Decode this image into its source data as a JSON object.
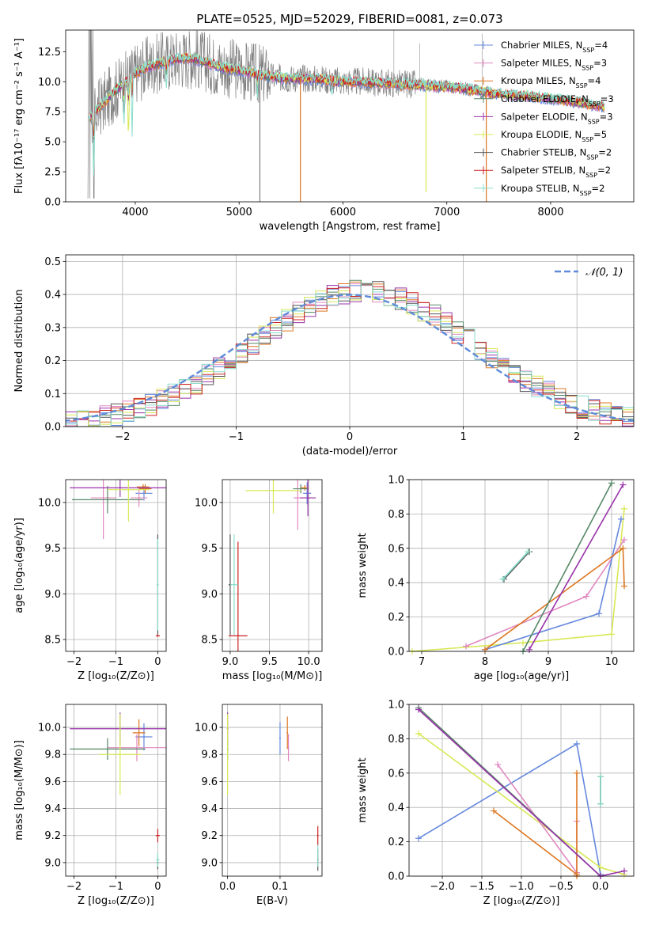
{
  "colors": {
    "chabrier_miles": "#6688dd",
    "salpeter_miles": "#e088c0",
    "kroupa_miles": "#dd7722",
    "chabrier_elodie": "#558866",
    "salpeter_elodie": "#9933aa",
    "kroupa_elodie": "#d8e855",
    "chabrier_stelib": "#555555",
    "salpeter_stelib": "#cc2222",
    "kroupa_stelib": "#88ddcc",
    "normal_curve": "#5f8bd8",
    "raw_spectrum": "#808080"
  },
  "chart_data": [
    {
      "id": "spectrum",
      "type": "line",
      "title": "PLATE=0525, MJD=52029, FIBERID=0081, z=0.073",
      "xlabel": "wavelength [Angstrom, rest frame]",
      "ylabel": "Flux [fλ10⁻¹⁷ erg cm⁻² s⁻¹ A⁻¹]",
      "xlim": [
        3330,
        8800
      ],
      "ylim": [
        0,
        14.3
      ],
      "xticks": [
        4000,
        5000,
        6000,
        7000,
        8000
      ],
      "xticklabels": [
        "4000",
        "5000",
        "6000",
        "7000",
        "8000"
      ],
      "yticks": [
        0,
        2.5,
        5,
        7.5,
        10,
        12.5
      ],
      "yticklabels": [
        "0.0",
        "2.5",
        "5.0",
        "7.5",
        "10.0",
        "12.5"
      ],
      "grid": false,
      "legend_position": "top-right",
      "legend": [
        {
          "label": "Chabrier MILES, N",
          "sub": "SSP",
          "tail": "=4",
          "color_key": "chabrier_miles"
        },
        {
          "label": "Salpeter MILES, N",
          "sub": "SSP",
          "tail": "=3",
          "color_key": "salpeter_miles"
        },
        {
          "label": "Kroupa MILES, N",
          "sub": "SSP",
          "tail": "=4",
          "color_key": "kroupa_miles"
        },
        {
          "label": "Chabrier ELODIE, N",
          "sub": "SSP",
          "tail": "=3",
          "color_key": "chabrier_elodie"
        },
        {
          "label": "Salpeter ELODIE, N",
          "sub": "SSP",
          "tail": "=3",
          "color_key": "salpeter_elodie"
        },
        {
          "label": "Kroupa ELODIE, N",
          "sub": "SSP",
          "tail": "=5",
          "color_key": "kroupa_elodie"
        },
        {
          "label": "Chabrier STELIB, N",
          "sub": "SSP",
          "tail": "=2",
          "color_key": "chabrier_stelib"
        },
        {
          "label": "Salpeter STELIB, N",
          "sub": "SSP",
          "tail": "=2",
          "color_key": "salpeter_stelib"
        },
        {
          "label": "Kroupa STELIB, N",
          "sub": "SSP",
          "tail": "=2",
          "color_key": "kroupa_stelib"
        }
      ],
      "continuum": {
        "x": [
          3550,
          3600,
          3700,
          3800,
          3900,
          4000,
          4100,
          4200,
          4300,
          4400,
          4500,
          4600,
          4700,
          4800,
          4900,
          5000,
          5200,
          5400,
          5600,
          5800,
          6000,
          6200,
          6400,
          6600,
          6800,
          7000,
          7200,
          7400,
          7600,
          7800,
          8000,
          8200,
          8400,
          8600,
          8800
        ],
        "y": [
          7.0,
          7.4,
          8.3,
          9.2,
          10.0,
          10.7,
          11.2,
          11.5,
          11.7,
          11.9,
          12.0,
          11.9,
          11.6,
          11.3,
          11.1,
          11.0,
          10.6,
          10.3,
          10.3,
          10.2,
          10.0,
          10.0,
          9.9,
          9.8,
          9.7,
          9.6,
          9.4,
          9.1,
          8.9,
          8.8,
          8.6,
          8.4,
          8.1,
          7.8,
          7.2
        ]
      },
      "absorption_lines": [
        {
          "x": 3600,
          "depth": 6.5,
          "color_key": "kroupa_stelib"
        },
        {
          "x": 3890,
          "depth": 4.0,
          "color_key": "kroupa_stelib"
        },
        {
          "x": 3935,
          "depth": 5.5,
          "color_key": "kroupa_elodie"
        },
        {
          "x": 3970,
          "depth": 5.0,
          "color_key": "kroupa_stelib"
        },
        {
          "x": 4300,
          "depth": 2.5,
          "color_key": "kroupa_stelib"
        },
        {
          "x": 5175,
          "depth": 2.0,
          "color_key": "kroupa_stelib"
        },
        {
          "x": 5893,
          "depth": 1.5,
          "color_key": "kroupa_stelib"
        },
        {
          "x": 6563,
          "depth": 0.8,
          "color_key": "kroupa_stelib"
        }
      ],
      "spikes_down": [
        {
          "x": 5200,
          "to": 0.0,
          "color_key": "raw_spectrum"
        },
        {
          "x": 5590,
          "to": 0.0,
          "color_key": "kroupa_miles"
        },
        {
          "x": 6800,
          "to": 0.8,
          "color_key": "kroupa_elodie"
        },
        {
          "x": 7380,
          "to": 0.0,
          "color_key": "kroupa_miles"
        }
      ],
      "spikes_up": [
        {
          "x": 6490,
          "to": 14.3
        },
        {
          "x": 6740,
          "to": 13.2
        },
        {
          "x": 7340,
          "to": 14.0
        }
      ]
    },
    {
      "id": "residuals",
      "type": "histogram",
      "xlabel": "(data-model)/error",
      "ylabel": "Normed distribution",
      "xlim": [
        -2.5,
        2.5
      ],
      "ylim": [
        0,
        0.52
      ],
      "xticks": [
        -2,
        -1,
        0,
        1,
        2
      ],
      "xticklabels": [
        "−2",
        "−1",
        "0",
        "1",
        "2"
      ],
      "yticks": [
        0,
        0.1,
        0.2,
        0.3,
        0.4,
        0.5
      ],
      "yticklabels": [
        "0.0",
        "0.1",
        "0.2",
        "0.3",
        "0.4",
        "0.5"
      ],
      "grid": true,
      "legend_position": "top-right",
      "legend": [
        {
          "label": "𝒩(0, 1)",
          "color_key": "normal_curve",
          "dashed": true
        }
      ],
      "bin_width": 0.1
    },
    {
      "id": "age_vs_z",
      "type": "scatter",
      "xlabel": "Z [log₁₀(Z/Z⊙)]",
      "ylabel": "age  [log₁₀(age/yr)]",
      "xlim": [
        -2.2,
        0.2
      ],
      "ylim": [
        8.37,
        10.25
      ],
      "xticks": [
        -2,
        -1,
        0
      ],
      "xticklabels": [
        "−2",
        "−1",
        "0"
      ],
      "yticks": [
        8.5,
        9.0,
        9.5,
        10.0
      ],
      "yticklabels": [
        "8.5",
        "9.0",
        "9.5",
        "10.0"
      ],
      "grid": true,
      "points": [
        {
          "x": -0.33,
          "y": 10.1,
          "xerr": 0.2,
          "yerr": 0.08,
          "color_key": "chabrier_miles"
        },
        {
          "x": -1.3,
          "y": 10.05,
          "xerr": 0.3,
          "yerr": 0.45,
          "color_key": "salpeter_miles"
        },
        {
          "x": -0.45,
          "y": 10.05,
          "xerr": 0.2,
          "yerr": 0.1,
          "color_key": "salpeter_miles"
        },
        {
          "x": -0.35,
          "y": 10.17,
          "xerr": 0.15,
          "yerr": 0.03,
          "color_key": "kroupa_miles"
        },
        {
          "x": -0.3,
          "y": 10.15,
          "xerr": 0.15,
          "yerr": 0.05,
          "color_key": "kroupa_miles"
        },
        {
          "x": -1.2,
          "y": 10.03,
          "xerr": 0.85,
          "yerr": 0.15,
          "color_key": "chabrier_elodie"
        },
        {
          "x": -0.9,
          "y": 10.16,
          "xerr": 1.2,
          "yerr": 0.1,
          "color_key": "salpeter_elodie"
        },
        {
          "x": -0.7,
          "y": 10.14,
          "xerr": 0.5,
          "yerr": 0.35,
          "color_key": "kroupa_elodie"
        },
        {
          "x": 0.0,
          "y": 9.1,
          "xerr": 0.02,
          "yerr": 0.55,
          "color_key": "chabrier_stelib"
        },
        {
          "x": 0.0,
          "y": 8.54,
          "xerr": 0.05,
          "yerr": 0.01,
          "color_key": "salpeter_stelib"
        },
        {
          "x": 0.0,
          "y": 9.1,
          "xerr": 0.02,
          "yerr": 0.5,
          "color_key": "kroupa_stelib"
        }
      ]
    },
    {
      "id": "age_vs_mass",
      "type": "scatter",
      "xlabel": "mass [log₁₀(M/M⊙)]",
      "ylabel": "",
      "xlim": [
        8.9,
        10.17
      ],
      "ylim": [
        8.37,
        10.25
      ],
      "xticks": [
        9.0,
        9.5,
        10.0
      ],
      "xticklabels": [
        "9.0",
        "9.5",
        "10.0"
      ],
      "yticks": [
        8.5,
        9.0,
        9.5,
        10.0
      ],
      "yticklabels": [
        "8.5",
        "9.0",
        "9.5",
        "10.0"
      ],
      "grid": true,
      "points": [
        {
          "x": 9.98,
          "y": 10.1,
          "xerr": 0.05,
          "yerr": 0.12,
          "color_key": "chabrier_miles"
        },
        {
          "x": 9.86,
          "y": 10.05,
          "xerr": 0.05,
          "yerr": 0.35,
          "color_key": "salpeter_miles"
        },
        {
          "x": 9.95,
          "y": 10.16,
          "xerr": 0.05,
          "yerr": 0.03,
          "color_key": "kroupa_miles"
        },
        {
          "x": 9.9,
          "y": 10.15,
          "xerr": 0.1,
          "yerr": 0.05,
          "color_key": "chabrier_elodie"
        },
        {
          "x": 9.99,
          "y": 10.05,
          "xerr": 0.1,
          "yerr": 0.2,
          "color_key": "salpeter_elodie"
        },
        {
          "x": 9.55,
          "y": 10.13,
          "xerr": 0.35,
          "yerr": 0.25,
          "color_key": "kroupa_elodie"
        },
        {
          "x": 9.0,
          "y": 9.1,
          "xerr": 0.02,
          "yerr": 0.55,
          "color_key": "chabrier_stelib"
        },
        {
          "x": 9.1,
          "y": 8.54,
          "xerr": 0.12,
          "yerr": 1.03,
          "color_key": "salpeter_stelib"
        },
        {
          "x": 9.05,
          "y": 9.1,
          "xerr": 0.05,
          "yerr": 0.55,
          "color_key": "kroupa_stelib"
        }
      ]
    },
    {
      "id": "massweight_vs_age",
      "type": "line",
      "xlabel": "age  [log₁₀(age/yr)]",
      "ylabel": "mass weight",
      "xlim": [
        6.8,
        10.35
      ],
      "ylim": [
        0,
        1.0
      ],
      "xticks": [
        7,
        8,
        9,
        10
      ],
      "xticklabels": [
        "7",
        "8",
        "9",
        "10"
      ],
      "yticks": [
        0,
        0.2,
        0.4,
        0.6,
        0.8,
        1.0
      ],
      "yticklabels": [
        "0.0",
        "0.2",
        "0.4",
        "0.6",
        "0.8",
        "1.0"
      ],
      "grid": true,
      "series": [
        {
          "color_key": "kroupa_elodie",
          "x": [
            6.85,
            8.6,
            10.0,
            10.2
          ],
          "y": [
            0.0,
            0.05,
            0.1,
            0.83
          ]
        },
        {
          "color_key": "salpeter_miles",
          "x": [
            7.7,
            9.6,
            10.2
          ],
          "y": [
            0.03,
            0.32,
            0.65
          ]
        },
        {
          "color_key": "chabrier_miles",
          "x": [
            8.0,
            9.8,
            10.15
          ],
          "y": [
            0.01,
            0.22,
            0.77
          ]
        },
        {
          "color_key": "kroupa_miles",
          "x": [
            8.0,
            10.18,
            10.2
          ],
          "y": [
            0.01,
            0.6,
            0.38
          ]
        },
        {
          "color_key": "chabrier_elodie",
          "x": [
            8.6,
            10.0
          ],
          "y": [
            0.0,
            0.98
          ]
        },
        {
          "color_key": "salpeter_elodie",
          "x": [
            8.7,
            10.18
          ],
          "y": [
            0.01,
            0.97
          ]
        },
        {
          "color_key": "chabrier_stelib",
          "x": [
            8.3,
            8.7
          ],
          "y": [
            0.42,
            0.58
          ]
        },
        {
          "color_key": "kroupa_stelib",
          "x": [
            8.28,
            8.68
          ],
          "y": [
            0.42,
            0.58
          ]
        }
      ]
    },
    {
      "id": "mass_vs_z",
      "type": "scatter",
      "xlabel": "Z [log₁₀(Z/Z⊙)]",
      "ylabel": "mass [log₁₀(M/M⊙)]",
      "xlim": [
        -2.2,
        0.2
      ],
      "ylim": [
        8.9,
        10.17
      ],
      "xticks": [
        -2,
        -1,
        0
      ],
      "xticklabels": [
        "−2",
        "−1",
        "0"
      ],
      "yticks": [
        9.0,
        9.2,
        9.4,
        9.6,
        9.8,
        10.0
      ],
      "yticklabels": [
        "9.0",
        "9.2",
        "9.4",
        "9.6",
        "9.8",
        "10.0"
      ],
      "grid": true,
      "points": [
        {
          "x": -0.33,
          "y": 9.93,
          "xerr": 0.2,
          "yerr": 0.1,
          "color_key": "chabrier_miles"
        },
        {
          "x": -0.5,
          "y": 9.85,
          "xerr": 0.7,
          "yerr": 0.1,
          "color_key": "salpeter_miles"
        },
        {
          "x": -0.45,
          "y": 9.96,
          "xerr": 0.15,
          "yerr": 0.1,
          "color_key": "kroupa_miles"
        },
        {
          "x": -1.2,
          "y": 9.84,
          "xerr": 0.9,
          "yerr": 0.08,
          "color_key": "chabrier_elodie"
        },
        {
          "x": -0.9,
          "y": 9.99,
          "xerr": 1.2,
          "yerr": 0.12,
          "color_key": "salpeter_elodie"
        },
        {
          "x": -0.9,
          "y": 9.8,
          "xerr": 0.5,
          "yerr": 0.3,
          "color_key": "kroupa_elodie"
        },
        {
          "x": 0.0,
          "y": 9.0,
          "xerr": 0.02,
          "yerr": 0.05,
          "color_key": "chabrier_stelib"
        },
        {
          "x": 0.0,
          "y": 9.2,
          "xerr": 0.05,
          "yerr": 0.05,
          "color_key": "salpeter_stelib"
        },
        {
          "x": 0.0,
          "y": 9.02,
          "xerr": 0.04,
          "yerr": 0.05,
          "color_key": "kroupa_stelib"
        }
      ]
    },
    {
      "id": "mass_vs_ebv",
      "type": "scatter",
      "xlabel": "E(B-V)",
      "ylabel": "",
      "xlim": [
        -0.01,
        0.18
      ],
      "ylim": [
        8.9,
        10.17
      ],
      "xticks": [
        0.0,
        0.1
      ],
      "xticklabels": [
        "0.0",
        "0.1"
      ],
      "yticks": [
        9.0,
        9.2,
        9.4,
        9.6,
        9.8,
        10.0
      ],
      "yticklabels": [
        "9.0",
        "9.2",
        "9.4",
        "9.6",
        "9.8",
        "10.0"
      ],
      "grid": true,
      "points": [
        {
          "x": 0.1,
          "y": 9.92,
          "xerr": 0.0,
          "yerr": 0.12,
          "color_key": "chabrier_miles"
        },
        {
          "x": 0.116,
          "y": 9.85,
          "xerr": 0.0,
          "yerr": 0.1,
          "color_key": "salpeter_miles"
        },
        {
          "x": 0.114,
          "y": 9.96,
          "xerr": 0.0,
          "yerr": 0.12,
          "color_key": "kroupa_miles"
        },
        {
          "x": 0.0,
          "y": 9.84,
          "xerr": 0.0,
          "yerr": 0.08,
          "color_key": "chabrier_elodie"
        },
        {
          "x": 0.0,
          "y": 9.99,
          "xerr": 0.0,
          "yerr": 0.12,
          "color_key": "salpeter_elodie"
        },
        {
          "x": 0.0,
          "y": 9.8,
          "xerr": 0.0,
          "yerr": 0.3,
          "color_key": "kroupa_elodie"
        },
        {
          "x": 0.172,
          "y": 9.02,
          "xerr": 0.0,
          "yerr": 0.08,
          "color_key": "chabrier_stelib"
        },
        {
          "x": 0.172,
          "y": 9.2,
          "xerr": 0.0,
          "yerr": 0.07,
          "color_key": "salpeter_stelib"
        },
        {
          "x": 0.172,
          "y": 9.05,
          "xerr": 0.0,
          "yerr": 0.08,
          "color_key": "kroupa_stelib"
        }
      ]
    },
    {
      "id": "massweight_vs_z",
      "type": "line",
      "xlabel": "Z [log₁₀(Z/Z⊙)]",
      "ylabel": "mass weight",
      "xlim": [
        -2.42,
        0.42
      ],
      "ylim": [
        0,
        1.0
      ],
      "xticks": [
        -2.0,
        -1.5,
        -1.0,
        -0.5,
        0.0
      ],
      "xticklabels": [
        "−2.0",
        "−1.5",
        "−1.0",
        "−0.5",
        "0.0"
      ],
      "yticks": [
        0,
        0.2,
        0.4,
        0.6,
        0.8,
        1.0
      ],
      "yticklabels": [
        "0.0",
        "0.2",
        "0.4",
        "0.6",
        "0.8",
        "1.0"
      ],
      "grid": true,
      "series": [
        {
          "color_key": "chabrier_miles",
          "x": [
            -2.3,
            -0.3,
            0.0
          ],
          "y": [
            0.22,
            0.77,
            0.01
          ]
        },
        {
          "color_key": "kroupa_elodie",
          "x": [
            -2.3,
            0.0,
            0.3
          ],
          "y": [
            0.83,
            0.05,
            0.01
          ]
        },
        {
          "color_key": "salpeter_miles",
          "x": [
            -1.3,
            -0.3,
            -0.3
          ],
          "y": [
            0.65,
            0.02,
            0.32
          ]
        },
        {
          "color_key": "kroupa_miles",
          "x": [
            -1.35,
            -0.3,
            -0.3,
            -0.3
          ],
          "y": [
            0.38,
            0.01,
            0.6,
            0.0
          ]
        },
        {
          "color_key": "chabrier_elodie",
          "x": [
            -2.3,
            0.0
          ],
          "y": [
            0.98,
            0.0
          ]
        },
        {
          "color_key": "salpeter_elodie",
          "x": [
            -2.3,
            0.0,
            0.3
          ],
          "y": [
            0.97,
            0.0,
            0.03
          ]
        },
        {
          "color_key": "chabrier_stelib",
          "x": [
            0.0,
            0.0
          ],
          "y": [
            0.42,
            0.58
          ]
        },
        {
          "color_key": "kroupa_stelib",
          "x": [
            0.0,
            0.0
          ],
          "y": [
            0.42,
            0.58
          ]
        }
      ]
    }
  ]
}
